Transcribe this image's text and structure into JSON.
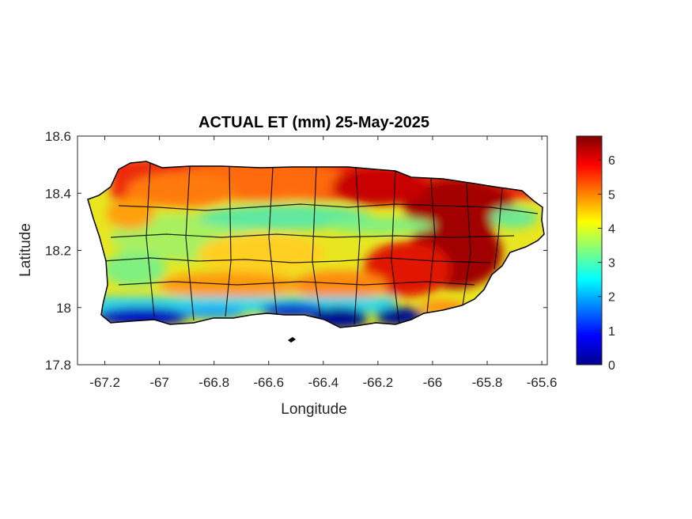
{
  "chart_data": {
    "type": "heatmap",
    "title": "ACTUAL ET (mm) 25-May-2025",
    "xlabel": "Longitude",
    "ylabel": "Latitude",
    "xlim": [
      -67.3,
      -65.58
    ],
    "ylim": [
      17.8,
      18.6
    ],
    "xticks": [
      -67.2,
      -67,
      -66.8,
      -66.6,
      -66.4,
      -66.2,
      -66,
      -65.8,
      -65.6
    ],
    "xtick_labels": [
      "-67.2",
      "-67",
      "-66.8",
      "-66.6",
      "-66.4",
      "-66.2",
      "-66",
      "-65.8",
      "-65.6"
    ],
    "yticks": [
      17.8,
      18,
      18.2,
      18.4,
      18.6
    ],
    "ytick_labels": [
      "17.8",
      "18",
      "18.2",
      "18.4",
      "18.6"
    ],
    "colorbar": {
      "colormap": "jet",
      "range": [
        0,
        6.7
      ],
      "ticks": [
        0,
        1,
        2,
        3,
        4,
        5,
        6
      ],
      "tick_labels": [
        "0",
        "1",
        "2",
        "3",
        "4",
        "5",
        "6"
      ]
    },
    "grid": false
  }
}
